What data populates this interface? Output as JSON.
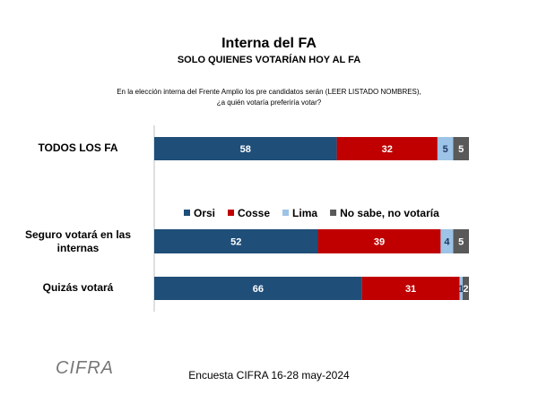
{
  "chart_data": {
    "type": "stacked-bar-horizontal",
    "title": "Interna del FA",
    "subtitle": "SOLO QUIENES VOTARÍAN HOY AL FA",
    "question_lines": [
      "En la elección interna del Frente Amplio los pre candidatos serán (LEER LISTADO NOMBRES),",
      "¿a quién votaría preferiría votar?"
    ],
    "categories": [
      "TODOS LOS FA",
      "Seguro votará en las internas",
      "Quizás votará"
    ],
    "series": [
      {
        "name": "Orsi",
        "color": "#1f4e79",
        "values": [
          58,
          52,
          66
        ]
      },
      {
        "name": "Cosse",
        "color": "#c00000",
        "values": [
          32,
          39,
          31
        ]
      },
      {
        "name": "Lima",
        "color": "#9dc3e6",
        "values": [
          5,
          4,
          1
        ]
      },
      {
        "name": "No sabe, no votaría",
        "color": "#595959",
        "values": [
          5,
          5,
          2
        ]
      }
    ],
    "xlim": [
      0,
      100
    ],
    "footer": "Encuesta CIFRA 16-28 may-2024",
    "logo": "CIFRA"
  }
}
